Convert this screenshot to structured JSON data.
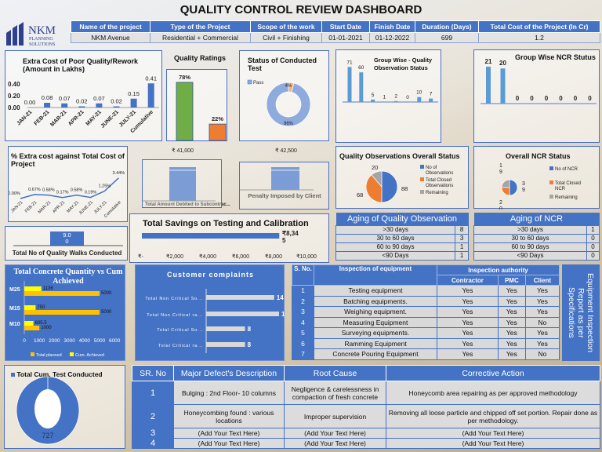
{
  "page_title": "QUALITY CONTROL REVIEW DASHBOARD",
  "logo": {
    "name": "NKM",
    "line2": "PLANNING",
    "line3": "SOLUTIONS"
  },
  "project_header": {
    "columns": [
      "Name of the project",
      "Type of the Project",
      "Scope of the work",
      "Start Date",
      "Finish Date",
      "Duration (Days)",
      "Total Cost of the Project (In Cr)"
    ],
    "values": [
      "NKM Avenue",
      "Residential + Commercial",
      "Civil + Finishing",
      "01-01-2021",
      "01-12-2022",
      "699",
      "1.2"
    ]
  },
  "colors": {
    "blue": "#4472c4",
    "orange": "#ed7d31",
    "gray": "#a5a5a5",
    "green": "#70ad47",
    "yellow": "#ffff00",
    "amber": "#ffc000"
  },
  "chart_data": [
    {
      "id": "extra_cost",
      "type": "bar",
      "title": "Extra Cost of Poor Quality/Rework (Amount in Lakhs)",
      "categories": [
        "JAN-21",
        "FEB-21",
        "MAR-21",
        "APR-21",
        "MAY-21",
        "JUNE-21",
        "JULY-21",
        "Cumulative"
      ],
      "values": [
        0.0,
        0.08,
        0.07,
        0.02,
        0.07,
        0.02,
        0.15,
        0.41
      ],
      "data_labels": [
        "0.00",
        "0.08",
        "0.07",
        "0.02",
        "0.07",
        "0.02",
        "0.15",
        "0.41"
      ],
      "yticks": [
        "0.00",
        "0.20",
        "0.40"
      ],
      "ylim": [
        0,
        0.45
      ]
    },
    {
      "id": "quality_ratings",
      "type": "bar",
      "title": "Quality Ratings",
      "values": [
        78,
        22
      ],
      "data_labels": [
        "78%",
        "22%"
      ],
      "colors": [
        "#70ad47",
        "#ed7d31"
      ]
    },
    {
      "id": "test_status",
      "type": "pie",
      "title": "Status of Conducted Test",
      "legend": [
        "Pass"
      ],
      "values": [
        96,
        4
      ],
      "data_labels": [
        "96%",
        "4%"
      ],
      "colors": [
        "#8faadc",
        "#f4b183"
      ]
    },
    {
      "id": "group_qo",
      "type": "bar",
      "title": "Group Wise - Quality Observation Status",
      "values": [
        71,
        60,
        5,
        1,
        2,
        0,
        10,
        7
      ]
    },
    {
      "id": "group_ncr",
      "type": "bar",
      "title": "Group Wise NCR Stutus",
      "values": [
        21,
        20,
        0,
        0,
        0,
        0,
        0,
        0
      ]
    },
    {
      "id": "extra_pct",
      "type": "line",
      "title": "% Extra cost against Total Cost of Project",
      "categories": [
        "JAN-21",
        "FEB-21",
        "MAR-21",
        "APR-21",
        "MAY-21",
        "JUNE-21",
        "JULY-21",
        "Cumulative"
      ],
      "values": [
        0.0,
        0.67,
        0.58,
        0.17,
        0.58,
        0.19,
        1.25,
        3.44
      ],
      "data_labels": [
        "0.00%",
        "0.67%",
        "0.58%",
        "0.17%",
        "0.58%",
        "0.19%",
        "1.25%",
        "3.44%"
      ]
    },
    {
      "id": "debited",
      "type": "bar",
      "xlabel": "Total Amount Debited to Subcontrac...",
      "value": 41000,
      "data_label": "₹ 41,000"
    },
    {
      "id": "penalty",
      "type": "bar",
      "xlabel": "Penalty Imposed by Client",
      "value": 42500,
      "data_label": "₹ 42,500"
    },
    {
      "id": "qo_overall",
      "type": "pie",
      "title": "Quality Observations Overall Status",
      "legend": [
        "No of Observations",
        "Total Closed Observations",
        "Remaining"
      ],
      "values": [
        88,
        68,
        20
      ],
      "colors": [
        "#4472c4",
        "#ed7d31",
        "#a5a5a5"
      ]
    },
    {
      "id": "ncr_overall",
      "type": "pie",
      "title": "Overall NCR Status",
      "legend": [
        "No of NCR",
        "Total Closed NCR",
        "Remaining"
      ],
      "values": [
        39,
        20,
        19
      ],
      "colors": [
        "#4472c4",
        "#ed7d31",
        "#a5a5a5"
      ]
    },
    {
      "id": "quality_walks",
      "type": "bar",
      "xlabel": "Total No of Quality Walks Conducted",
      "value": 9,
      "data_label": "9.00"
    },
    {
      "id": "savings",
      "type": "bar",
      "title": "Total Savings on Testing and Calibration",
      "value": 8345,
      "data_label": "₹8,345",
      "xticks": [
        "₹-",
        "₹2,000",
        "₹4,000",
        "₹6,000",
        "₹8,000",
        "₹10,000"
      ],
      "xlim": [
        0,
        10000
      ]
    },
    {
      "id": "concrete",
      "type": "bar",
      "title": "Total Concrete Quantity vs Cum Achieved",
      "categories": [
        "M25",
        "M15",
        "M10"
      ],
      "series": [
        {
          "name": "Total planned",
          "values": [
            5000,
            5000,
            1000
          ],
          "labels": [
            "5000",
            "5000",
            "1000"
          ]
        },
        {
          "name": "Cum. Achieved",
          "values": [
            1136,
            750,
            605.5
          ],
          "labels": [
            "1136",
            "750",
            "605.5"
          ]
        }
      ],
      "xticks": [
        "0",
        "1000",
        "2000",
        "3000",
        "4000",
        "5000",
        "6000"
      ],
      "xlim": [
        0,
        6000
      ]
    },
    {
      "id": "complaints",
      "type": "bar",
      "title": "Customer complaints",
      "categories": [
        "Total Non Critical So...",
        "Total Non Critical ra...",
        "Total Critical So...",
        "Total Critical ra..."
      ],
      "values": [
        14,
        15,
        8,
        8
      ]
    },
    {
      "id": "cum_tests",
      "type": "pie",
      "title": "Total Cum. Test Conducted",
      "value": 727,
      "data_label": "727"
    }
  ],
  "aging_qo": {
    "title": "Aging of Quality Observation",
    "rows": [
      [
        ">30 days",
        "8"
      ],
      [
        "30 to 60 days",
        "3"
      ],
      [
        "60 to 90 days",
        "1"
      ],
      [
        "<90 Days",
        "1"
      ]
    ]
  },
  "aging_ncr": {
    "title": "Aging of NCR",
    "rows": [
      [
        ">30 days",
        "1"
      ],
      [
        "30 to 60 days",
        "0"
      ],
      [
        "60 to 90 days",
        "0"
      ],
      [
        "<90 Days",
        "0"
      ]
    ]
  },
  "equipment": {
    "headers": {
      "sno": "S. No.",
      "item": "Inspection of equipment",
      "authority": "Inspection authority",
      "contractor": "Contractor",
      "pmc": "PMC",
      "client": "Client"
    },
    "side_label": "Equipment Inspection Report as per Specifications",
    "rows": [
      [
        "1",
        "Testing equipment",
        "Yes",
        "Yes",
        "Yes"
      ],
      [
        "2",
        "Batching equipments.",
        "Yes",
        "Yes",
        "Yes"
      ],
      [
        "3",
        "Weighing equipment.",
        "Yes",
        "Yes",
        "Yes"
      ],
      [
        "4",
        "Measuring Equipment",
        "Yes",
        "Yes",
        "No"
      ],
      [
        "5",
        "Surveying equipments.",
        "Yes",
        "Yes",
        "Yes"
      ],
      [
        "6",
        "Ramming Equipment",
        "Yes",
        "Yes",
        "Yes"
      ],
      [
        "7",
        "Concrete Pouring Equipment",
        "Yes",
        "Yes",
        "No"
      ]
    ]
  },
  "defects": {
    "headers": [
      "SR. No",
      "Major Defect's Description",
      "Root Cause",
      "Corrective Action"
    ],
    "rows": [
      [
        "1",
        "Bulging  : 2nd Floor- 10 columns",
        "Negligence & carelessness in compaction of fresh concrete",
        "Honeycomb area repairing as per approved methodology"
      ],
      [
        "2",
        "Honeycombing found : various locations",
        "Improper supervision",
        "Removing all loose particle and chipped off set portion. Repair done as per methodology."
      ],
      [
        "3",
        "(Add Your Text Here)",
        "(Add Your Text Here)",
        "(Add Your Text Here)"
      ],
      [
        "4",
        "(Add Your Text Here)",
        "(Add Your Text Here)",
        "(Add Your Text Here)"
      ]
    ]
  }
}
